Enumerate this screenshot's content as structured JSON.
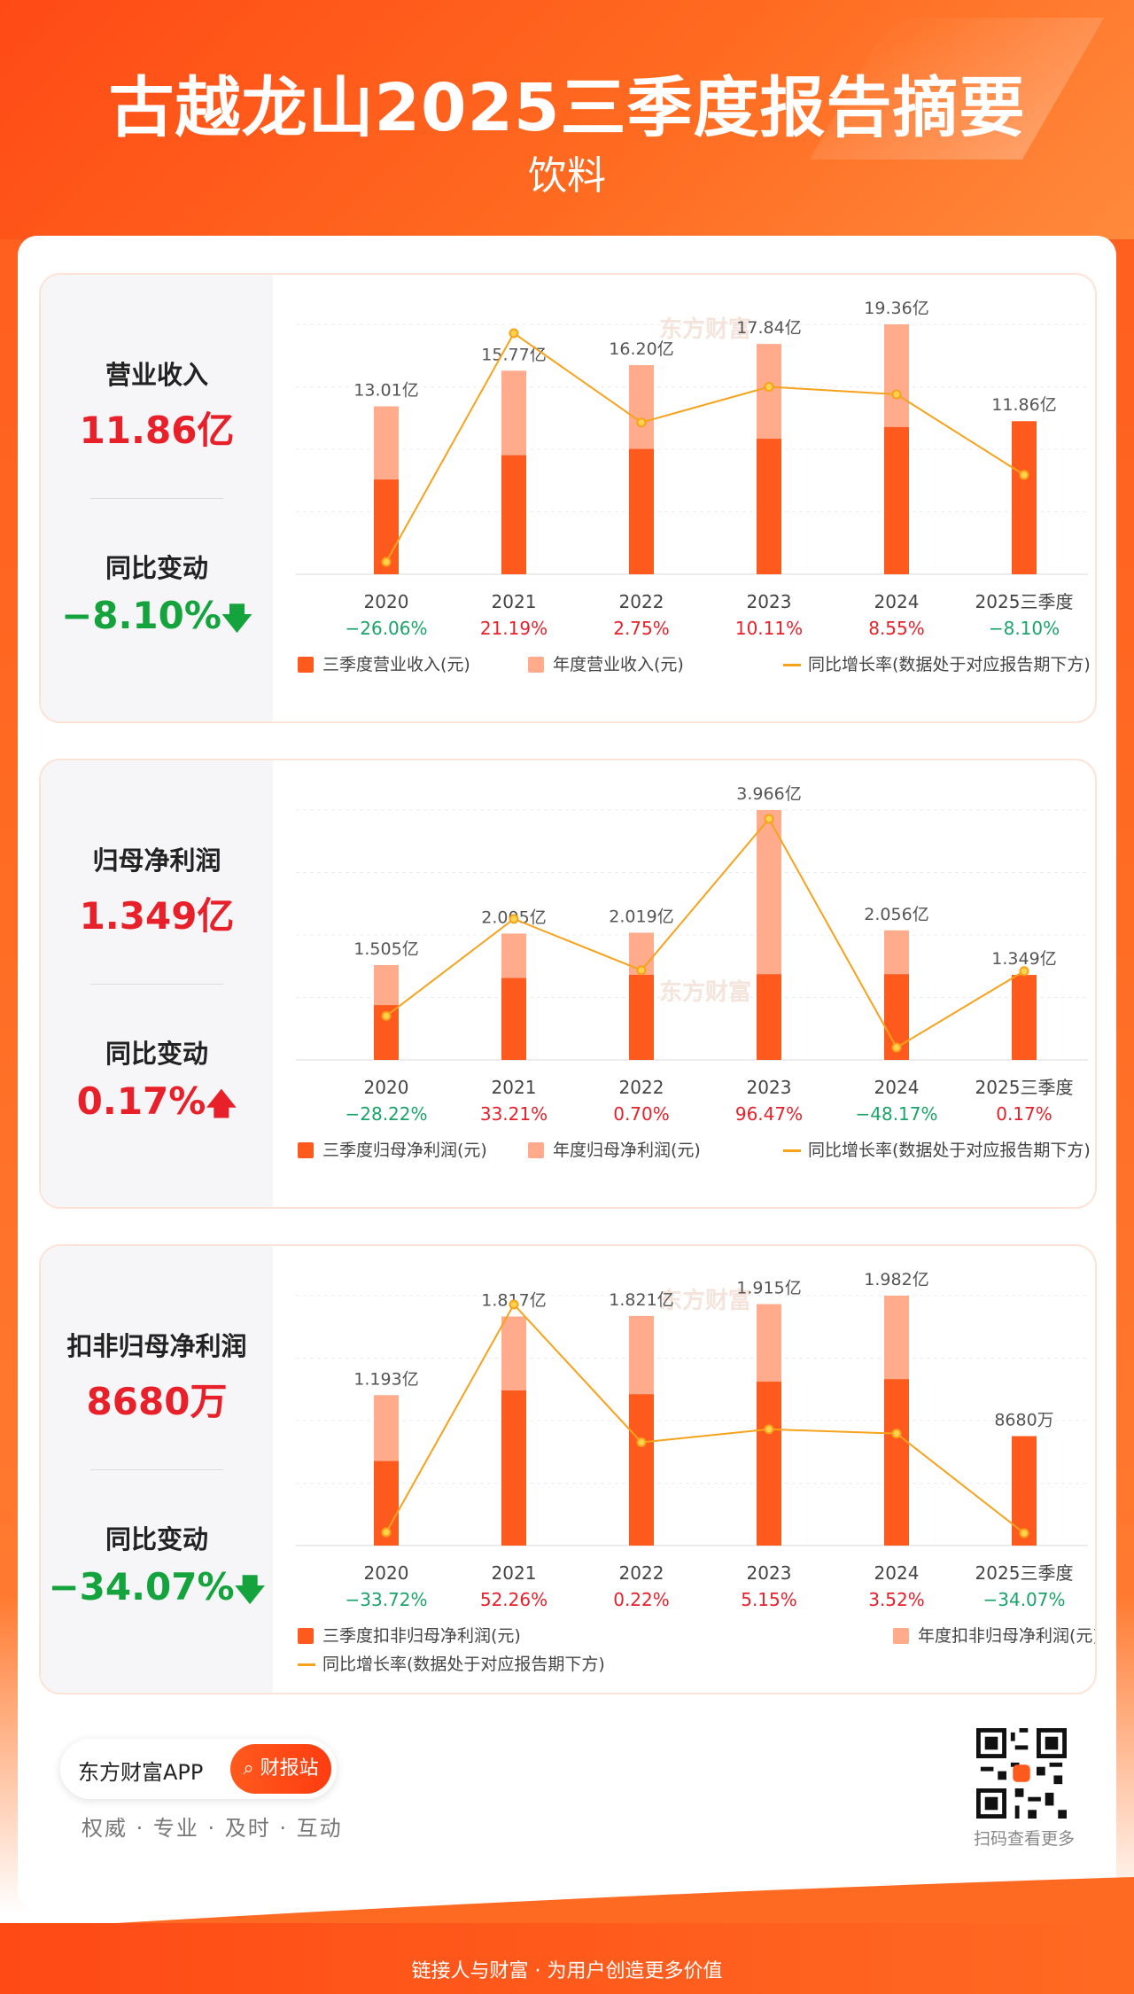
{
  "header": {
    "title": "古越龙山2025三季度报告摘要",
    "subtitle": "饮料"
  },
  "watermark": "东方财富",
  "panels": [
    {
      "metric_label": "营业收入",
      "metric_value": "11.86亿",
      "change_label": "同比变动",
      "change_value": "−8.10%",
      "change_direction": "down"
    },
    {
      "metric_label": "归母净利润",
      "metric_value": "1.349亿",
      "change_label": "同比变动",
      "change_value": "0.17%",
      "change_direction": "up"
    },
    {
      "metric_label": "扣非归母净利润",
      "metric_value": "8680万",
      "change_label": "同比变动",
      "change_value": "−34.07%",
      "change_direction": "down"
    }
  ],
  "chart_data": [
    {
      "type": "bar",
      "categories": [
        "2020",
        "2021",
        "2022",
        "2023",
        "2024",
        "2025三季度"
      ],
      "series": [
        {
          "name": "三季度营业收入(元)",
          "values": [
            7.34,
            9.22,
            9.71,
            10.5,
            11.4,
            11.86
          ]
        },
        {
          "name": "年度营业收入(元)",
          "values": [
            13.01,
            15.77,
            16.2,
            17.84,
            19.36,
            null
          ]
        },
        {
          "name": "同比增长率(数据处于对应报告期下方)",
          "values": [
            -26.06,
            21.19,
            2.75,
            10.11,
            8.55,
            -8.1
          ]
        }
      ],
      "annual_labels": [
        "13.01亿",
        "15.77亿",
        "16.20亿",
        "17.84亿",
        "19.36亿",
        "11.86亿"
      ],
      "growth_labels": [
        "−26.06%",
        "21.19%",
        "2.75%",
        "10.11%",
        "8.55%",
        "−8.10%"
      ],
      "colors": {
        "quarter": "#ff5a1e",
        "annual": "#ffab8c",
        "line": "#f7a21b",
        "up": "#e8202a",
        "down": "#1aa36b"
      }
    },
    {
      "type": "bar",
      "categories": [
        "2020",
        "2021",
        "2022",
        "2023",
        "2024",
        "2025三季度"
      ],
      "series": [
        {
          "name": "三季度归母净利润(元)",
          "values": [
            0.87,
            1.3,
            1.35,
            1.36,
            1.36,
            1.349
          ]
        },
        {
          "name": "年度归母净利润(元)",
          "values": [
            1.505,
            2.005,
            2.019,
            3.966,
            2.056,
            null
          ]
        },
        {
          "name": "同比增长率(数据处于对应报告期下方)",
          "values": [
            -28.22,
            33.21,
            0.7,
            96.47,
            -48.17,
            0.17
          ]
        }
      ],
      "annual_labels": [
        "1.505亿",
        "2.005亿",
        "2.019亿",
        "3.966亿",
        "2.056亿",
        "1.349亿"
      ],
      "growth_labels": [
        "−28.22%",
        "33.21%",
        "0.70%",
        "96.47%",
        "−48.17%",
        "0.17%"
      ],
      "colors": {
        "quarter": "#ff5a1e",
        "annual": "#ffab8c",
        "line": "#f7a21b",
        "up": "#e8202a",
        "down": "#1aa36b"
      }
    },
    {
      "type": "bar",
      "categories": [
        "2020",
        "2021",
        "2022",
        "2023",
        "2024",
        "2025三季度"
      ],
      "series": [
        {
          "name": "三季度扣非归母净利润(元)",
          "values": [
            0.67,
            1.23,
            1.2,
            1.3,
            1.32,
            0.868
          ]
        },
        {
          "name": "年度扣非归母净利润(元)",
          "values": [
            1.193,
            1.817,
            1.821,
            1.915,
            1.982,
            null
          ]
        },
        {
          "name": "同比增长率(数据处于对应报告期下方)",
          "values": [
            -33.72,
            52.26,
            0.22,
            5.15,
            3.52,
            -34.07
          ]
        }
      ],
      "annual_labels": [
        "1.193亿",
        "1.817亿",
        "1.821亿",
        "1.915亿",
        "1.982亿",
        "8680万"
      ],
      "growth_labels": [
        "−33.72%",
        "52.26%",
        "0.22%",
        "5.15%",
        "3.52%",
        "−34.07%"
      ],
      "colors": {
        "quarter": "#ff5a1e",
        "annual": "#ffab8c",
        "line": "#f7a21b",
        "up": "#e8202a",
        "down": "#1aa36b"
      }
    }
  ],
  "footer": {
    "app_name": "东方财富APP",
    "button_label": "财报站",
    "slogan": "权威 · 专业 · 及时 · 互动",
    "qr_caption": "扫码查看更多",
    "bottom_text": "链接人与财富 · 为用户创造更多价值"
  }
}
